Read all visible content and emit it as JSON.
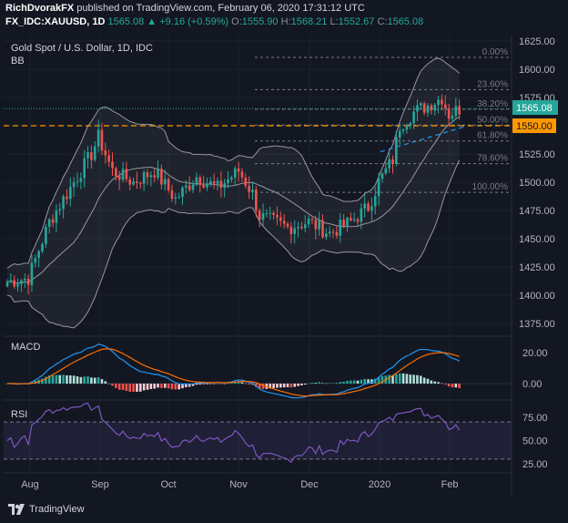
{
  "header": {
    "author": "RichDvorakFX",
    "published": "published on TradingView.com, February 06, 2020 17:31:12 UTC",
    "symbol": "FX_IDC:XAUUSD, 1D",
    "last": "1565.08",
    "change": "+9.16 (+0.59%)",
    "o_label": "O:",
    "o": "1555.90",
    "h_label": "H:",
    "h": "1568.21",
    "l_label": "L:",
    "l": "1552.67",
    "c_label": "C:",
    "c": "1565.08"
  },
  "pane_title": "Gold Spot / U.S. Dollar, 1D, IDC",
  "bb_label": "BB",
  "macd_label": "MACD",
  "rsi_label": "RSI",
  "price_axis": [
    "1625.00",
    "1600.00",
    "1575.00",
    "1550.00",
    "1525.00",
    "1500.00",
    "1475.00",
    "1450.00",
    "1425.00",
    "1400.00",
    "1375.00"
  ],
  "macd_axis": [
    "20.00",
    "0.00"
  ],
  "rsi_axis": [
    "75.00",
    "50.00",
    "25.00"
  ],
  "time_axis": [
    "Aug",
    "Sep",
    "Oct",
    "Nov",
    "Dec",
    "2020",
    "Feb"
  ],
  "price_badges": {
    "last": "1565.08",
    "support": "1550.00"
  },
  "fib_levels": [
    {
      "label": "0.00%",
      "price": 1610.5
    },
    {
      "label": "23.60%",
      "price": 1582.0
    },
    {
      "label": "38.20%",
      "price": 1564.6
    },
    {
      "label": "50.00%",
      "price": 1550.6
    },
    {
      "label": "61.80%",
      "price": 1536.5
    },
    {
      "label": "78.60%",
      "price": 1516.4
    },
    {
      "label": "100.00%",
      "price": 1491.0
    }
  ],
  "colors": {
    "background": "#131722",
    "up_candle": "#26a69a",
    "down_candle": "#ef5350",
    "support_line": "#ff9800",
    "last_line": "#26a69a",
    "macd_line": "#2196f3",
    "signal_line": "#ff6d00",
    "rsi_line": "#7e57c2",
    "text": "#b2b5be"
  },
  "brand": "TradingView",
  "brand_icon": "tradingview-logo-icon"
}
